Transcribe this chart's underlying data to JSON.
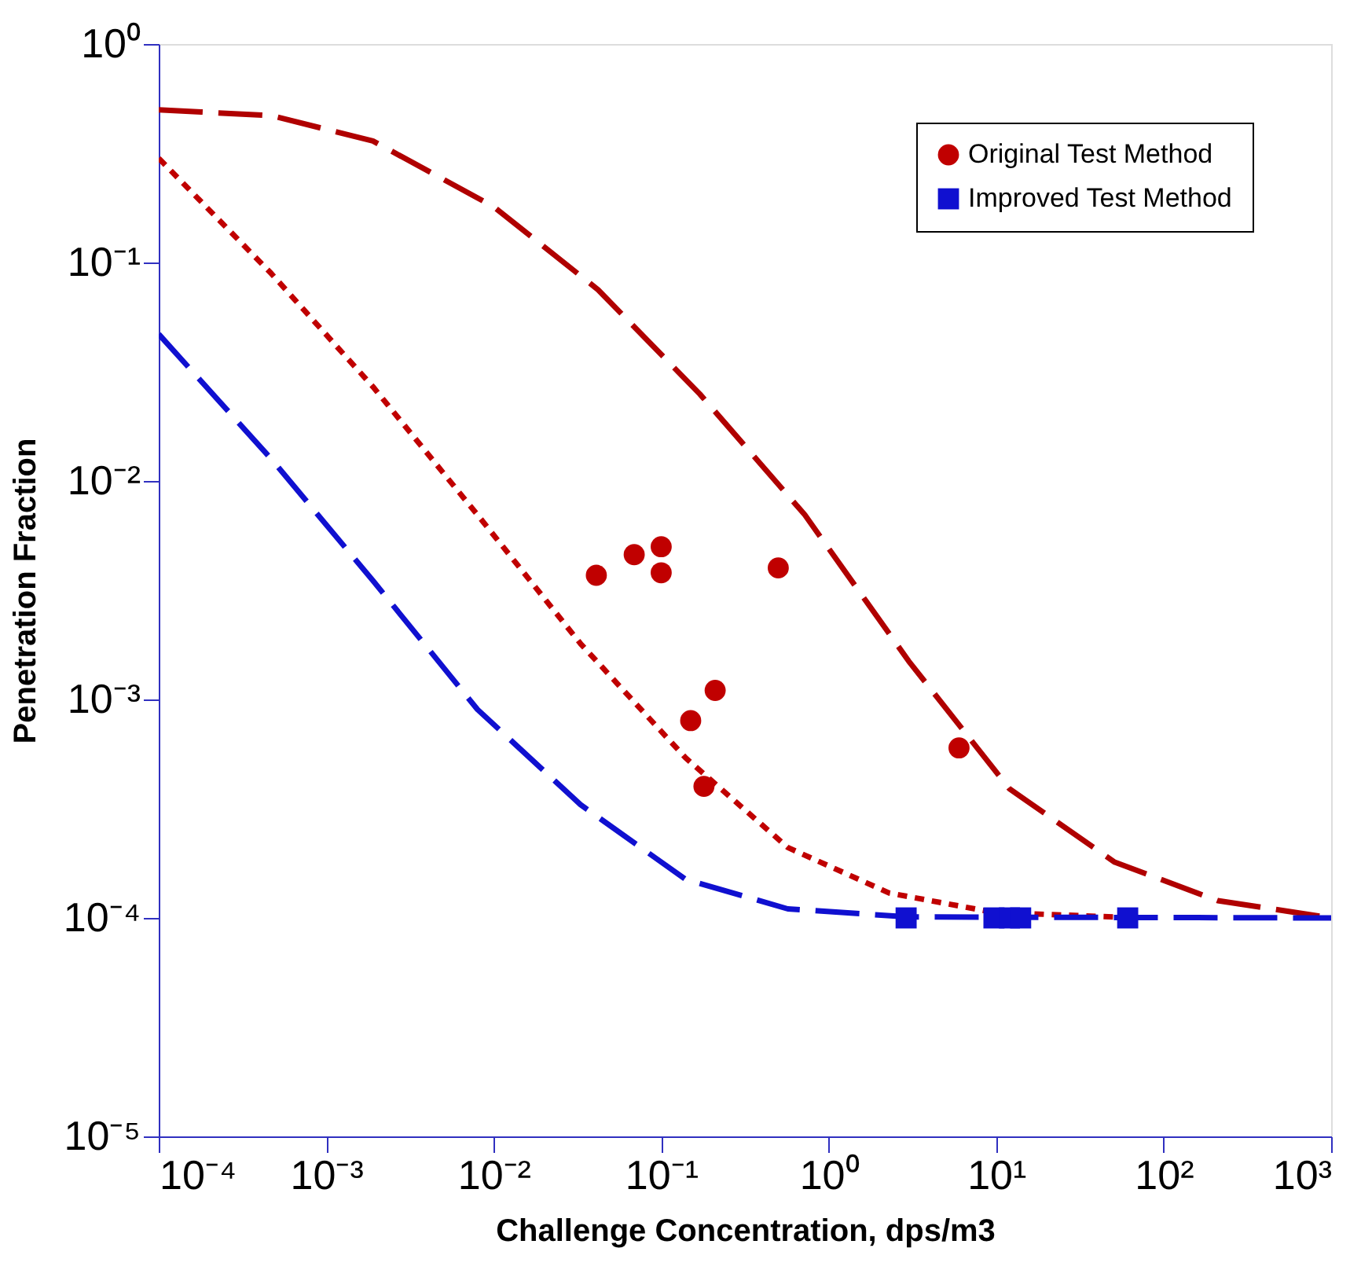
{
  "chart_data": {
    "type": "scatter",
    "xlabel": "Challenge  Concentration,  dps/m3",
    "ylabel": "Penetration  Fraction",
    "log": "xy",
    "grid": false,
    "legend": "top right",
    "xlim": [
      0.0001,
      1000
    ],
    "ylim": [
      1e-05,
      1
    ],
    "xticks": [
      {
        "value": 0.0001,
        "label": "10⁻⁴"
      },
      {
        "value": 0.001,
        "label": "10⁻³"
      },
      {
        "value": 0.01,
        "label": "10⁻²"
      },
      {
        "value": 0.1,
        "label": "10⁻¹"
      },
      {
        "value": 1,
        "label": "10⁰"
      },
      {
        "value": 10,
        "label": "10¹"
      },
      {
        "value": 100,
        "label": "10²"
      },
      {
        "value": 1000,
        "label": "10³"
      }
    ],
    "yticks": [
      {
        "value": 1e-05,
        "label": "10⁻⁵"
      },
      {
        "value": 0.0001,
        "label": "10⁻⁴"
      },
      {
        "value": 0.001,
        "label": "10⁻³"
      },
      {
        "value": 0.01,
        "label": "10⁻²"
      },
      {
        "value": 0.1,
        "label": "10⁻¹"
      },
      {
        "value": 1,
        "label": "10⁰"
      }
    ],
    "series": [
      {
        "name": "Original Test Method",
        "marker": "circle",
        "color": "#c00000",
        "x": [
          0.041,
          0.069,
          0.1,
          0.1,
          0.5,
          0.15,
          0.21,
          0.18,
          6.0
        ],
        "values": [
          0.0037,
          0.0046,
          0.005,
          0.0038,
          0.004,
          0.0008,
          0.0011,
          0.0004,
          0.0006
        ]
      },
      {
        "name": "Improved Test Method",
        "marker": "square",
        "color": "#1010d0",
        "x": [
          2.9,
          9.7,
          12,
          14,
          61
        ],
        "values": [
          0.0001,
          0.0001,
          0.0001,
          0.0001,
          0.0001
        ]
      },
      {
        "type": "line",
        "line_style": "dashed",
        "color": "#b00000",
        "x": [
          0.0001,
          0.00047,
          0.0019,
          0.01,
          0.042,
          0.17,
          0.72,
          3.0,
          12,
          51,
          210,
          1000
        ],
        "values": [
          0.5,
          0.47,
          0.36,
          0.18,
          0.075,
          0.025,
          0.007,
          0.0015,
          0.00039,
          0.00018,
          0.00012,
          0.0001
        ]
      },
      {
        "type": "line",
        "line_style": "dotted",
        "color": "#c00000",
        "x": [
          0.0001,
          0.00047,
          0.0019,
          0.008,
          0.033,
          0.14,
          0.57,
          2.3,
          9.7,
          51
        ],
        "values": [
          0.3,
          0.089,
          0.027,
          0.007,
          0.0018,
          0.00054,
          0.00021,
          0.00013,
          0.000106,
          0.000101
        ]
      },
      {
        "type": "line",
        "line_style": "dashed",
        "color": "#1010d0",
        "x": [
          0.0001,
          0.00047,
          0.0019,
          0.008,
          0.033,
          0.14,
          0.57,
          3.0,
          1000
        ],
        "values": [
          0.047,
          0.0126,
          0.0035,
          0.0009,
          0.00033,
          0.00015,
          0.00011,
          0.000101,
          0.0001
        ]
      }
    ]
  }
}
